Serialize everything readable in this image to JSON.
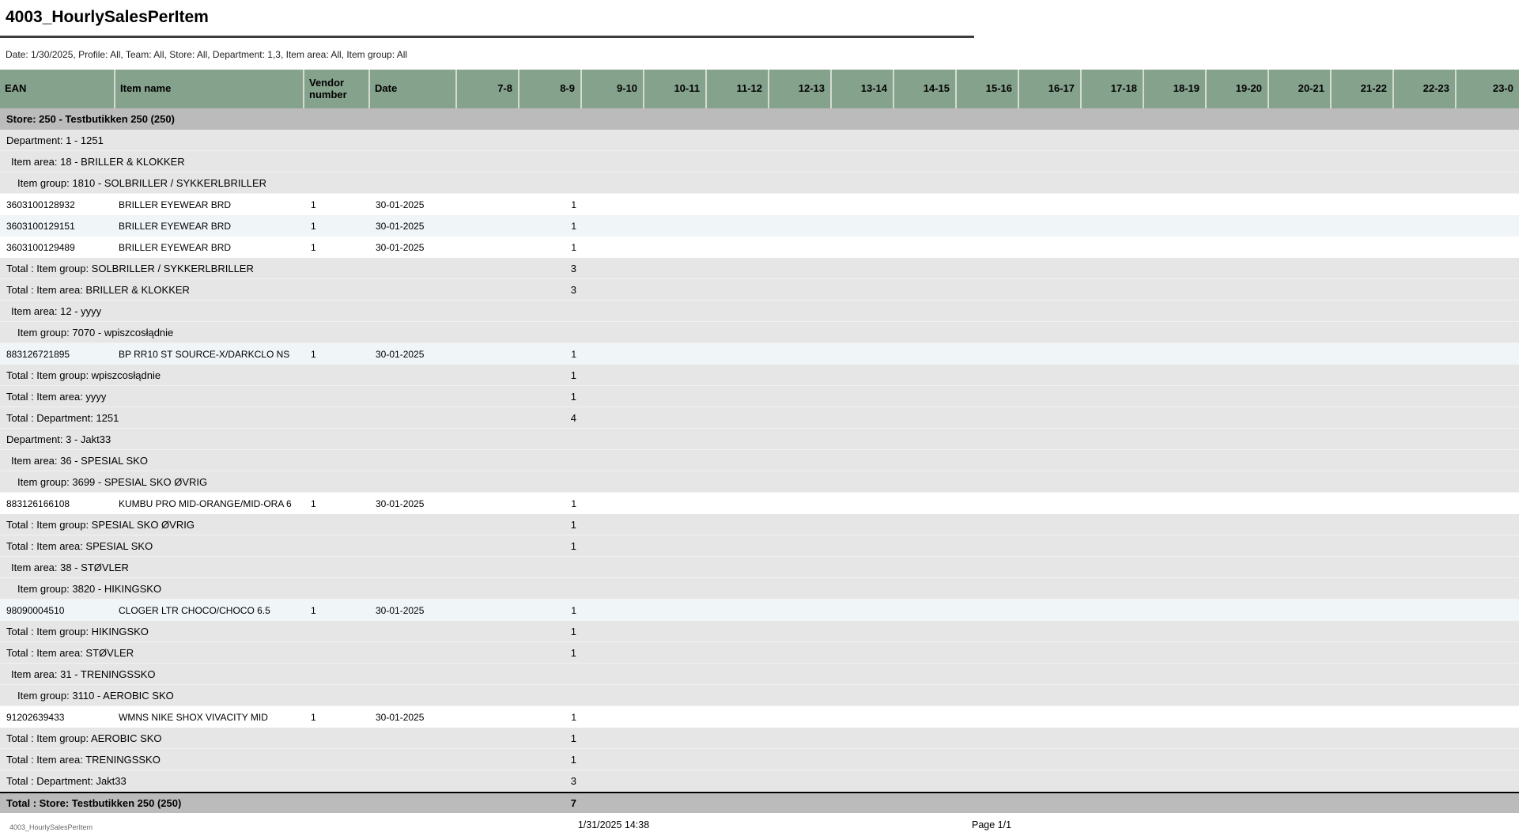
{
  "report": {
    "title": "4003_HourlySalesPerItem",
    "filters": "Date: 1/30/2025, Profile: All, Team: All, Store: All, Department: 1,3, Item area: All, Item group: All",
    "footer": {
      "left": "4003_HourlySalesPerItem",
      "timestamp": "1/31/2025 14:38",
      "page": "Page 1/1"
    }
  },
  "colors": {
    "header_green": "#85a28c",
    "store_row_gray": "#bbbbbb",
    "group_total_gray": "#e6e6e6",
    "alt_row_blue": "#f0f5f7",
    "title_rule": "#3d3d3d"
  },
  "table": {
    "columns": [
      "EAN",
      "Item name",
      "Vendor number",
      "Date",
      "7-8",
      "8-9",
      "9-10",
      "10-11",
      "11-12",
      "12-13",
      "13-14",
      "14-15",
      "15-16",
      "16-17",
      "17-18",
      "18-19",
      "19-20",
      "20-21",
      "21-22",
      "22-23",
      "23-0"
    ],
    "rows": [
      {
        "type": "store",
        "label": "Store: 250 - Testbutikken 250 (250)"
      },
      {
        "type": "group",
        "level": 1,
        "label": "Department: 1 - 1251"
      },
      {
        "type": "group",
        "level": 2,
        "label": "Item area: 18 - BRILLER & KLOKKER"
      },
      {
        "type": "group",
        "level": 3,
        "label": "Item group: 1810 - SOLBRILLER / SYKKERLBRILLER"
      },
      {
        "type": "item",
        "alt": false,
        "ean": "3603100128932",
        "name": "BRILLER EYEWEAR BRD",
        "vendor": "1",
        "date": "30-01-2025",
        "hours": {
          "8-9": "1"
        }
      },
      {
        "type": "item",
        "alt": true,
        "ean": "3603100129151",
        "name": "BRILLER EYEWEAR BRD",
        "vendor": "1",
        "date": "30-01-2025",
        "hours": {
          "8-9": "1"
        }
      },
      {
        "type": "item",
        "alt": false,
        "ean": "3603100129489",
        "name": "BRILLER EYEWEAR BRD",
        "vendor": "1",
        "date": "30-01-2025",
        "hours": {
          "8-9": "1"
        }
      },
      {
        "type": "total",
        "label": "Total : Item group: SOLBRILLER / SYKKERLBRILLER",
        "value": "3"
      },
      {
        "type": "total",
        "label": "Total : Item area: BRILLER & KLOKKER",
        "value": "3"
      },
      {
        "type": "group",
        "level": 2,
        "label": "Item area: 12 - yyyy"
      },
      {
        "type": "group",
        "level": 3,
        "label": "Item group: 7070 - wpiszcosłądnie"
      },
      {
        "type": "item",
        "alt": true,
        "ean": "883126721895",
        "name": "BP RR10 ST SOURCE-X/DARKCLO NS",
        "vendor": "1",
        "date": "30-01-2025",
        "hours": {
          "8-9": "1"
        }
      },
      {
        "type": "total",
        "label": "Total : Item group: wpiszcosłądnie",
        "value": "1"
      },
      {
        "type": "total",
        "label": "Total : Item area: yyyy",
        "value": "1"
      },
      {
        "type": "total",
        "label": "Total : Department: 1251",
        "value": "4"
      },
      {
        "type": "group",
        "level": 1,
        "label": "Department: 3 - Jakt33"
      },
      {
        "type": "group",
        "level": 2,
        "label": "Item area: 36 - SPESIAL SKO"
      },
      {
        "type": "group",
        "level": 3,
        "label": "Item group: 3699 - SPESIAL SKO ØVRIG"
      },
      {
        "type": "item",
        "alt": false,
        "ean": "883126166108",
        "name": "KUMBU PRO MID-ORANGE/MID-ORA 6",
        "vendor": "1",
        "date": "30-01-2025",
        "hours": {
          "8-9": "1"
        }
      },
      {
        "type": "total",
        "label": "Total : Item group: SPESIAL SKO ØVRIG",
        "value": "1"
      },
      {
        "type": "total",
        "label": "Total : Item area: SPESIAL SKO",
        "value": "1"
      },
      {
        "type": "group",
        "level": 2,
        "label": "Item area: 38 - STØVLER"
      },
      {
        "type": "group",
        "level": 3,
        "label": "Item group: 3820 - HIKINGSKO"
      },
      {
        "type": "item",
        "alt": true,
        "ean": "98090004510",
        "name": "CLOGER LTR CHOCO/CHOCO 6.5",
        "vendor": "1",
        "date": "30-01-2025",
        "hours": {
          "8-9": "1"
        }
      },
      {
        "type": "total",
        "label": "Total : Item group: HIKINGSKO",
        "value": "1"
      },
      {
        "type": "total",
        "label": "Total : Item area: STØVLER",
        "value": "1"
      },
      {
        "type": "group",
        "level": 2,
        "label": "Item area: 31 - TRENINGSSKO"
      },
      {
        "type": "group",
        "level": 3,
        "label": "Item group: 3110 - AEROBIC SKO"
      },
      {
        "type": "item",
        "alt": false,
        "ean": "91202639433",
        "name": "WMNS NIKE SHOX VIVACITY MID",
        "vendor": "1",
        "date": "30-01-2025",
        "hours": {
          "8-9": "1"
        }
      },
      {
        "type": "total",
        "label": "Total : Item group: AEROBIC SKO",
        "value": "1"
      },
      {
        "type": "total",
        "label": "Total : Item area: TRENINGSSKO",
        "value": "1"
      },
      {
        "type": "total",
        "label": "Total : Department: Jakt33",
        "value": "3"
      },
      {
        "type": "store_total",
        "label": "Total : Store: Testbutikken 250 (250)",
        "value": "7"
      }
    ]
  }
}
